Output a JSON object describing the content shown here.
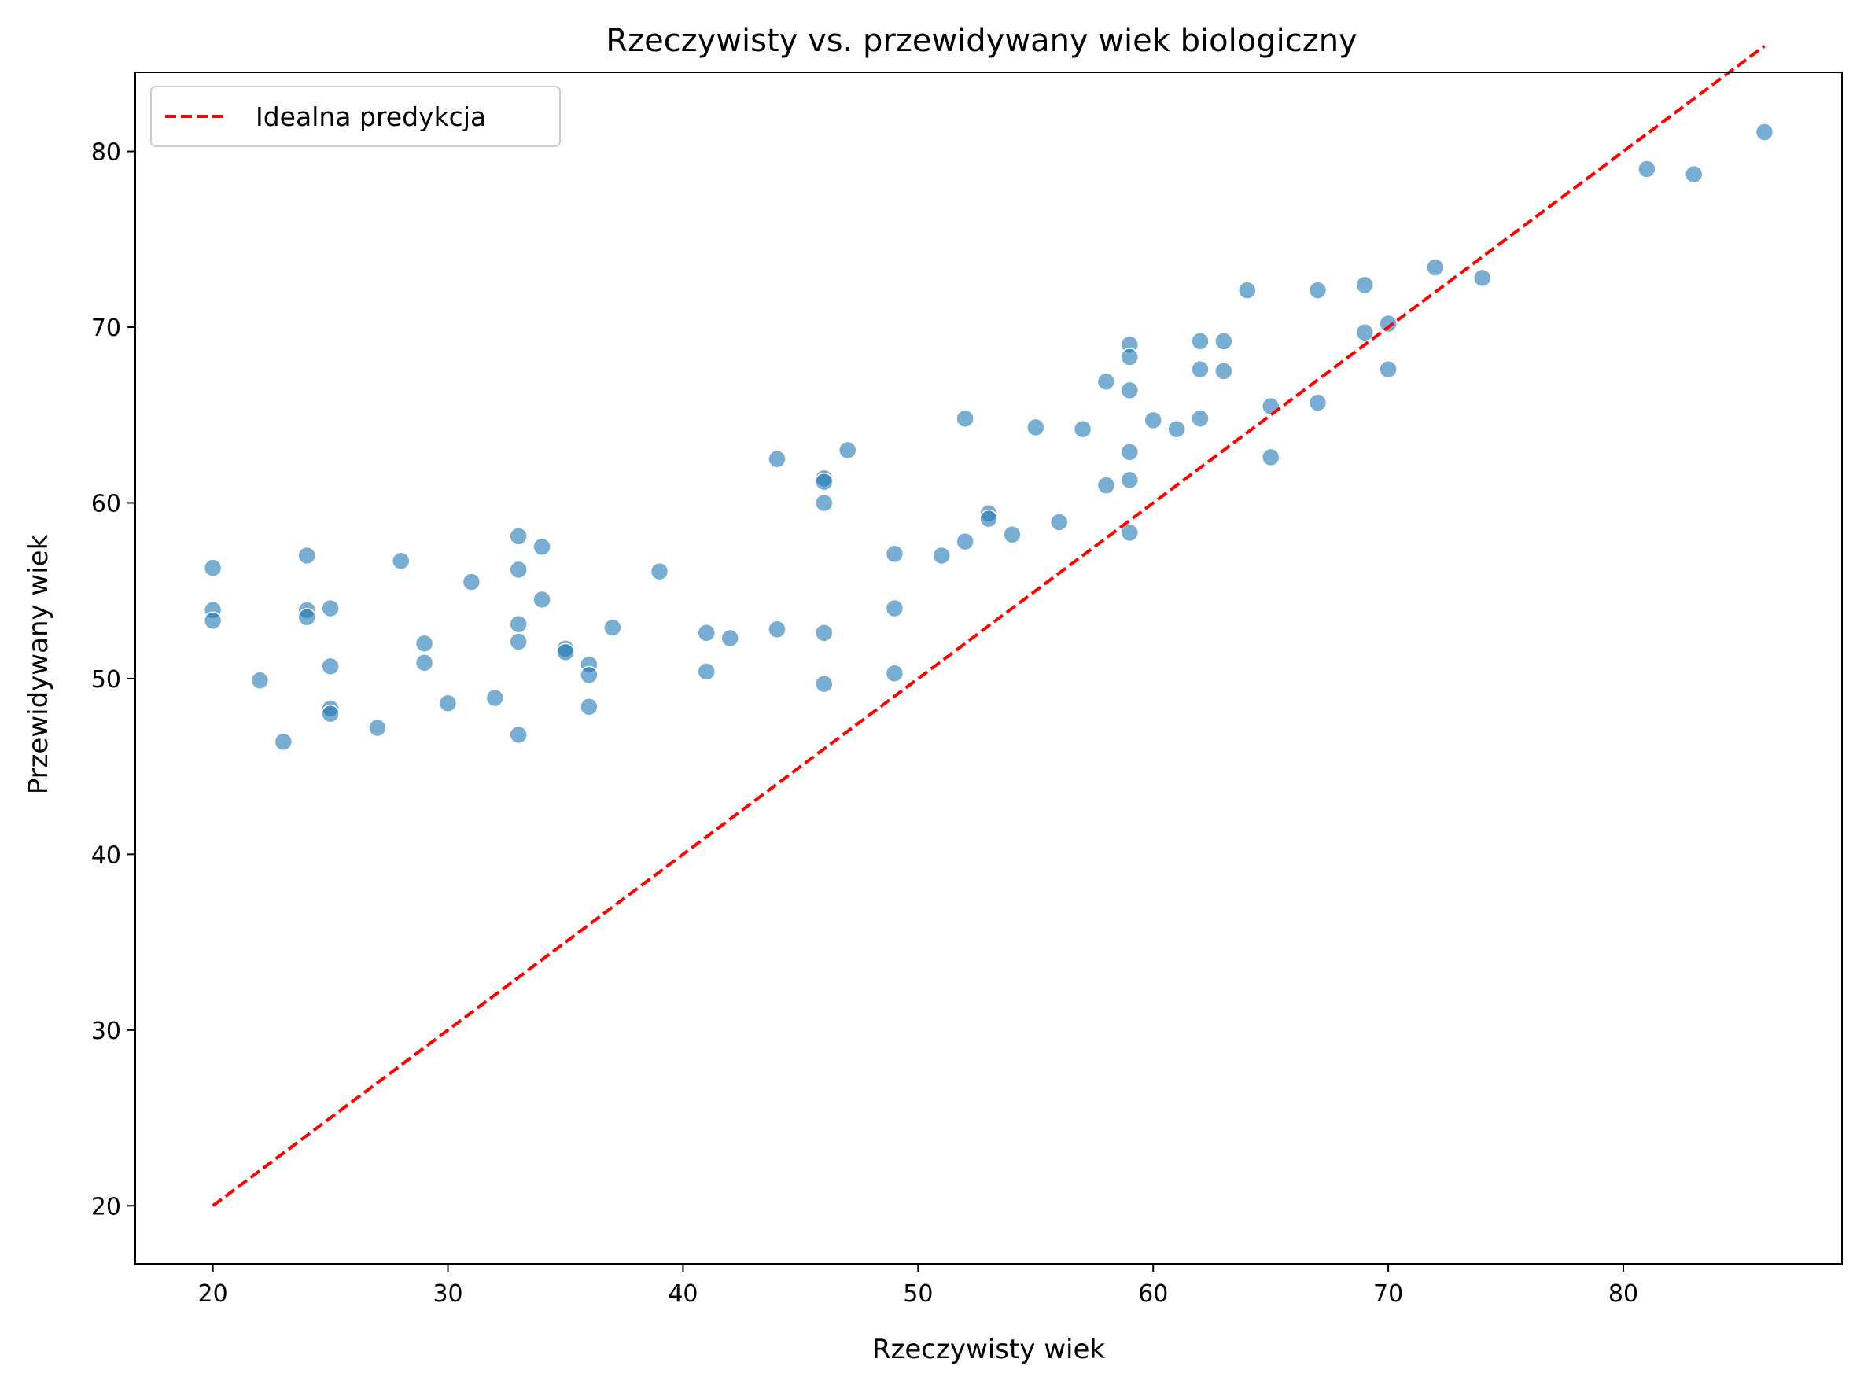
{
  "chart_data": {
    "type": "scatter",
    "title": "Rzeczywisty vs. przewidywany wiek biologiczny",
    "xlabel": "Rzeczywisty wiek",
    "ylabel": "Przewidywany wiek",
    "xlim": [
      16.7,
      89.3
    ],
    "ylim": [
      16.7,
      84.5
    ],
    "xticks": [
      20,
      30,
      40,
      50,
      60,
      70,
      80
    ],
    "yticks": [
      20,
      30,
      40,
      50,
      60,
      70,
      80
    ],
    "grid": false,
    "legend": {
      "placement": "top-left",
      "entries": [
        "Idealna predykcja"
      ]
    },
    "reference_line": {
      "name": "Idealna predykcja",
      "style": "dashed",
      "color": "#ff0000",
      "x": [
        20,
        86
      ],
      "y": [
        20,
        86
      ]
    },
    "point_color": "#1f77b4",
    "points": [
      [
        20,
        56.3
      ],
      [
        20,
        53.9
      ],
      [
        20,
        53.3
      ],
      [
        22,
        49.9
      ],
      [
        23,
        46.4
      ],
      [
        24,
        57.0
      ],
      [
        24,
        53.9
      ],
      [
        24,
        53.5
      ],
      [
        25,
        54.0
      ],
      [
        25,
        50.7
      ],
      [
        25,
        48.3
      ],
      [
        25,
        48.0
      ],
      [
        27,
        47.2
      ],
      [
        28,
        56.7
      ],
      [
        29,
        52.0
      ],
      [
        29,
        50.9
      ],
      [
        30,
        48.6
      ],
      [
        31,
        55.5
      ],
      [
        32,
        48.9
      ],
      [
        33,
        58.1
      ],
      [
        33,
        56.2
      ],
      [
        33,
        53.1
      ],
      [
        33,
        52.1
      ],
      [
        33,
        46.8
      ],
      [
        34,
        57.5
      ],
      [
        34,
        54.5
      ],
      [
        35,
        51.7
      ],
      [
        35,
        51.5
      ],
      [
        36,
        50.8
      ],
      [
        36,
        50.2
      ],
      [
        36,
        48.4
      ],
      [
        37,
        52.9
      ],
      [
        39,
        56.1
      ],
      [
        41,
        52.6
      ],
      [
        41,
        50.4
      ],
      [
        42,
        52.3
      ],
      [
        44,
        62.5
      ],
      [
        44,
        52.8
      ],
      [
        46,
        61.4
      ],
      [
        46,
        61.2
      ],
      [
        46,
        60.0
      ],
      [
        46,
        52.6
      ],
      [
        46,
        49.7
      ],
      [
        47,
        63.0
      ],
      [
        49,
        57.1
      ],
      [
        49,
        54.0
      ],
      [
        49,
        50.3
      ],
      [
        51,
        57.0
      ],
      [
        52,
        64.8
      ],
      [
        52,
        57.8
      ],
      [
        53,
        59.4
      ],
      [
        53,
        59.1
      ],
      [
        54,
        58.2
      ],
      [
        55,
        64.3
      ],
      [
        56,
        58.9
      ],
      [
        57,
        64.2
      ],
      [
        58,
        66.9
      ],
      [
        58,
        61.0
      ],
      [
        59,
        69.0
      ],
      [
        59,
        68.3
      ],
      [
        59,
        66.4
      ],
      [
        59,
        62.9
      ],
      [
        59,
        61.3
      ],
      [
        59,
        58.3
      ],
      [
        60,
        64.7
      ],
      [
        61,
        64.2
      ],
      [
        62,
        69.2
      ],
      [
        62,
        67.6
      ],
      [
        62,
        64.8
      ],
      [
        63,
        69.2
      ],
      [
        63,
        67.5
      ],
      [
        64,
        72.1
      ],
      [
        65,
        65.5
      ],
      [
        65,
        62.6
      ],
      [
        67,
        72.1
      ],
      [
        67,
        65.7
      ],
      [
        69,
        72.4
      ],
      [
        69,
        69.7
      ],
      [
        70,
        70.2
      ],
      [
        70,
        67.6
      ],
      [
        72,
        73.4
      ],
      [
        74,
        72.8
      ],
      [
        81,
        79.0
      ],
      [
        83,
        78.7
      ],
      [
        86,
        81.1
      ]
    ]
  }
}
